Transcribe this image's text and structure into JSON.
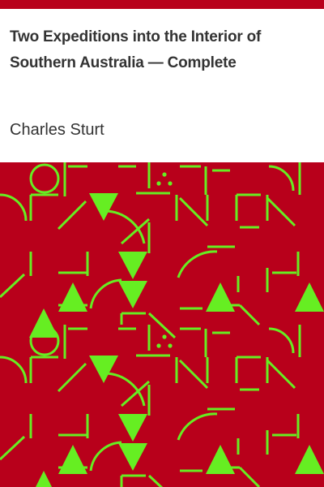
{
  "book": {
    "title": "Two Expeditions into the Interior of Southern Australia — Complete",
    "author": "Charles Sturt"
  },
  "colors": {
    "accent_bar": "#b8001b",
    "pattern_background": "#b8001b",
    "pattern_lines": "#66ee22"
  }
}
